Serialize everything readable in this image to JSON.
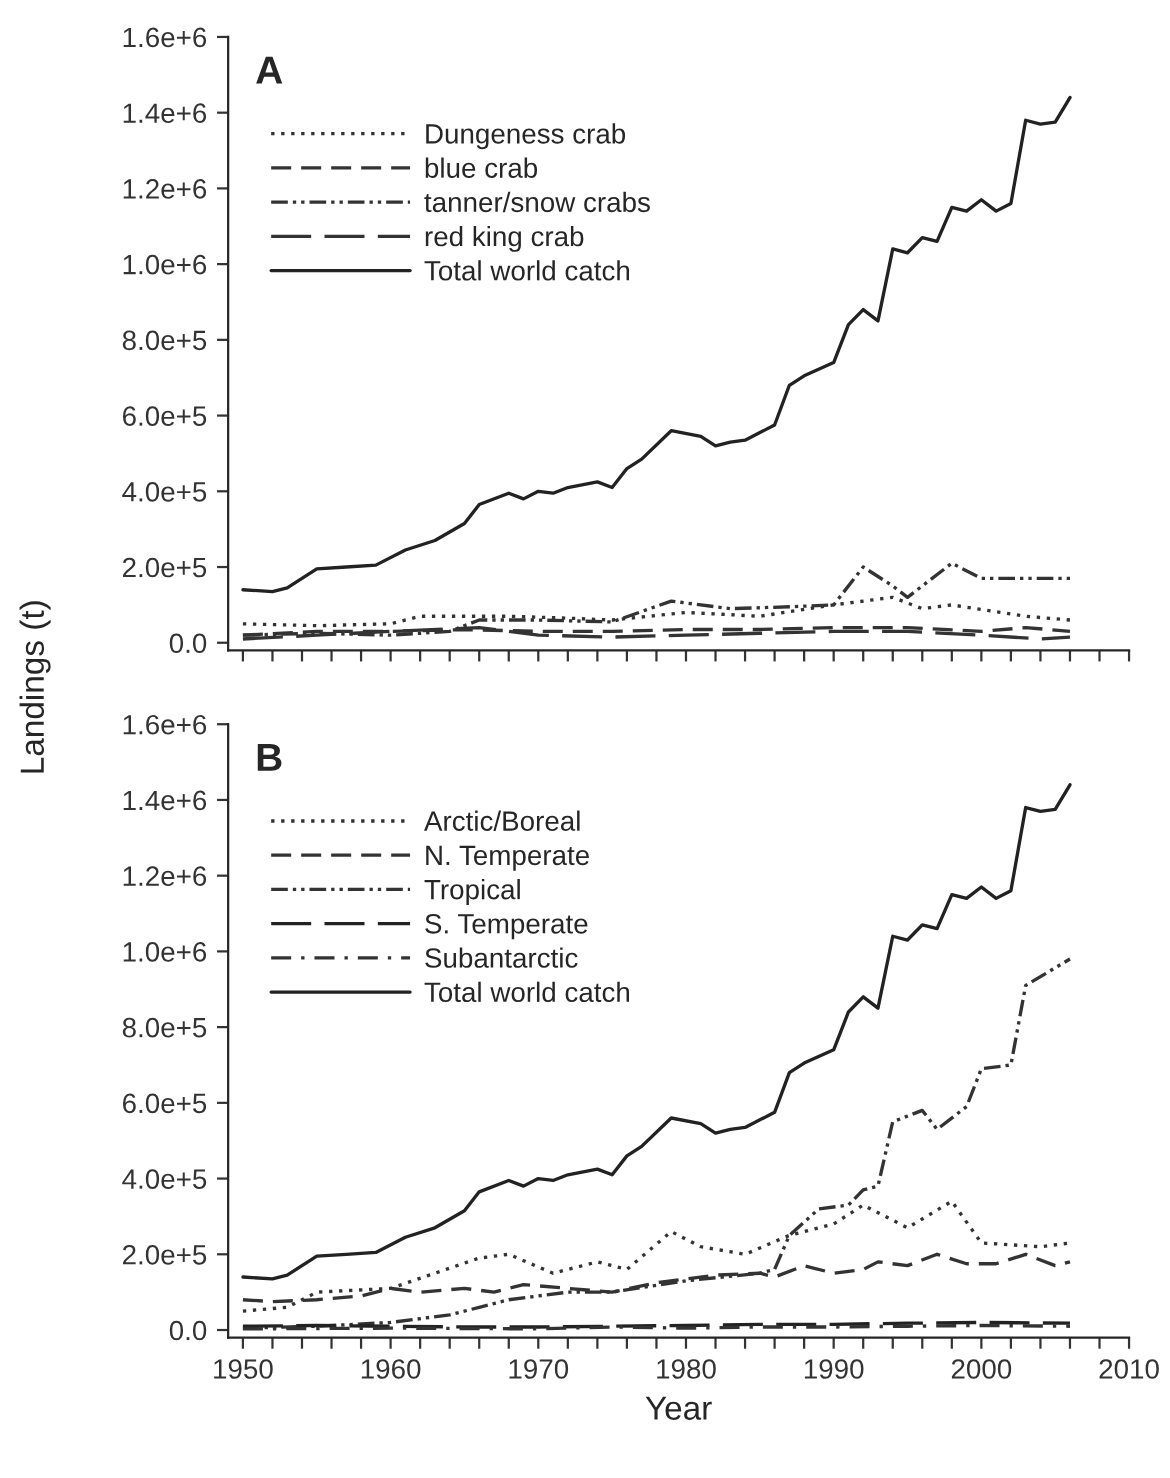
{
  "chart_data": [
    {
      "type": "line",
      "ylabel": "Landings (t)",
      "annotations": [
        "A"
      ],
      "legend": "top left",
      "tick_labels": "y",
      "grid": false,
      "xlim": [
        1949,
        2010
      ],
      "ylim": [
        -20000,
        1600000
      ],
      "xticks": [
        {
          "value": 1950,
          "label": null
        },
        {
          "value": 1952,
          "label": null
        },
        {
          "value": 1954,
          "label": null
        },
        {
          "value": 1956,
          "label": null
        },
        {
          "value": 1958,
          "label": null
        },
        {
          "value": 1960,
          "label": null
        },
        {
          "value": 1962,
          "label": null
        },
        {
          "value": 1964,
          "label": null
        },
        {
          "value": 1966,
          "label": null
        },
        {
          "value": 1968,
          "label": null
        },
        {
          "value": 1970,
          "label": null
        },
        {
          "value": 1972,
          "label": null
        },
        {
          "value": 1974,
          "label": null
        },
        {
          "value": 1976,
          "label": null
        },
        {
          "value": 1978,
          "label": null
        },
        {
          "value": 1980,
          "label": null
        },
        {
          "value": 1982,
          "label": null
        },
        {
          "value": 1984,
          "label": null
        },
        {
          "value": 1986,
          "label": null
        },
        {
          "value": 1988,
          "label": null
        },
        {
          "value": 1990,
          "label": null
        },
        {
          "value": 1992,
          "label": null
        },
        {
          "value": 1994,
          "label": null
        },
        {
          "value": 1996,
          "label": null
        },
        {
          "value": 1998,
          "label": null
        },
        {
          "value": 2000,
          "label": null
        },
        {
          "value": 2002,
          "label": null
        },
        {
          "value": 2004,
          "label": null
        },
        {
          "value": 2006,
          "label": null
        },
        {
          "value": 2008,
          "label": null
        },
        {
          "value": 2010,
          "label": null
        }
      ],
      "yticks": [
        {
          "value": 0,
          "label": "0.0"
        },
        {
          "value": 200000,
          "label": "2.0e+5"
        },
        {
          "value": 400000,
          "label": "4.0e+5"
        },
        {
          "value": 600000,
          "label": "6.0e+5"
        },
        {
          "value": 800000,
          "label": "8.0e+5"
        },
        {
          "value": 1000000,
          "label": "1.0e+6"
        },
        {
          "value": 1200000,
          "label": "1.2e+6"
        },
        {
          "value": 1400000,
          "label": "1.4e+6"
        },
        {
          "value": 1600000,
          "label": "1.6e+6"
        }
      ],
      "series": [
        {
          "name": "Dungeness crab",
          "color": "#333333",
          "line_style": "dotted",
          "x": [
            1950,
            1955,
            1960,
            1962,
            1966,
            1968,
            1972,
            1975,
            1980,
            1985,
            1990,
            1994,
            1996,
            1998,
            2003,
            2006
          ],
          "values": [
            50000,
            45000,
            50000,
            70000,
            70000,
            70000,
            65000,
            60000,
            80000,
            70000,
            100000,
            120000,
            90000,
            100000,
            70000,
            60000
          ]
        },
        {
          "name": "blue crab",
          "color": "#333333",
          "line_style": "dashed",
          "x": [
            1950,
            1955,
            1960,
            1965,
            1970,
            1975,
            1980,
            1985,
            1990,
            1995,
            2000,
            2003,
            2006
          ],
          "values": [
            20000,
            30000,
            30000,
            35000,
            30000,
            30000,
            35000,
            35000,
            40000,
            40000,
            30000,
            40000,
            30000
          ]
        },
        {
          "name": "tanner/snow crabs",
          "color": "#333333",
          "line_style": "dashdotdot",
          "x": [
            1950,
            1955,
            1960,
            1964,
            1966,
            1970,
            1975,
            1979,
            1983,
            1987,
            1990,
            1992,
            1994,
            1995,
            1998,
            2000,
            2003,
            2006
          ],
          "values": [
            20000,
            25000,
            20000,
            30000,
            60000,
            60000,
            55000,
            110000,
            90000,
            95000,
            100000,
            200000,
            150000,
            120000,
            210000,
            170000,
            170000,
            170000
          ]
        },
        {
          "name": "red king crab",
          "color": "#333333",
          "line_style": "longdash",
          "x": [
            1950,
            1955,
            1960,
            1966,
            1970,
            1975,
            1980,
            1985,
            1990,
            1995,
            2000,
            2004,
            2006
          ],
          "values": [
            10000,
            20000,
            30000,
            40000,
            20000,
            15000,
            20000,
            25000,
            30000,
            30000,
            20000,
            10000,
            15000
          ]
        },
        {
          "name": "Total world catch",
          "color": "#222222",
          "line_style": "solid",
          "x": [
            1950,
            1952,
            1953,
            1955,
            1957,
            1959,
            1961,
            1963,
            1965,
            1966,
            1968,
            1969,
            1970,
            1971,
            1972,
            1974,
            1975,
            1976,
            1977,
            1979,
            1981,
            1982,
            1983,
            1984,
            1986,
            1987,
            1988,
            1990,
            1991,
            1992,
            1993,
            1994,
            1995,
            1996,
            1997,
            1998,
            1999,
            2000,
            2001,
            2002,
            2003,
            2004,
            2005,
            2006
          ],
          "values": [
            140000,
            135000,
            145000,
            195000,
            200000,
            205000,
            245000,
            270000,
            315000,
            365000,
            395000,
            380000,
            400000,
            395000,
            410000,
            425000,
            410000,
            460000,
            485000,
            560000,
            545000,
            520000,
            530000,
            535000,
            575000,
            680000,
            705000,
            740000,
            840000,
            880000,
            850000,
            1040000,
            1030000,
            1070000,
            1060000,
            1150000,
            1140000,
            1170000,
            1140000,
            1160000,
            1380000,
            1370000,
            1375000,
            1440000
          ]
        }
      ]
    },
    {
      "type": "line",
      "xlabel": "Year",
      "annotations": [
        "B"
      ],
      "legend": "top left",
      "grid": false,
      "xlim": [
        1949,
        2010
      ],
      "ylim": [
        -20000,
        1600000
      ],
      "xticks": [
        1950,
        {
          "value": 1952,
          "label": null
        },
        {
          "value": 1954,
          "label": null
        },
        {
          "value": 1956,
          "label": null
        },
        {
          "value": 1958,
          "label": null
        },
        1960,
        {
          "value": 1962,
          "label": null
        },
        {
          "value": 1964,
          "label": null
        },
        {
          "value": 1966,
          "label": null
        },
        {
          "value": 1968,
          "label": null
        },
        1970,
        {
          "value": 1972,
          "label": null
        },
        {
          "value": 1974,
          "label": null
        },
        {
          "value": 1976,
          "label": null
        },
        {
          "value": 1978,
          "label": null
        },
        1980,
        {
          "value": 1982,
          "label": null
        },
        {
          "value": 1984,
          "label": null
        },
        {
          "value": 1986,
          "label": null
        },
        {
          "value": 1988,
          "label": null
        },
        1990,
        {
          "value": 1992,
          "label": null
        },
        {
          "value": 1994,
          "label": null
        },
        {
          "value": 1996,
          "label": null
        },
        {
          "value": 1998,
          "label": null
        },
        2000,
        {
          "value": 2002,
          "label": null
        },
        {
          "value": 2004,
          "label": null
        },
        {
          "value": 2006,
          "label": null
        },
        {
          "value": 2008,
          "label": null
        },
        2010
      ],
      "yticks": [
        {
          "value": 0,
          "label": "0.0"
        },
        {
          "value": 200000,
          "label": "2.0e+5"
        },
        {
          "value": 400000,
          "label": "4.0e+5"
        },
        {
          "value": 600000,
          "label": "6.0e+5"
        },
        {
          "value": 800000,
          "label": "8.0e+5"
        },
        {
          "value": 1000000,
          "label": "1.0e+6"
        },
        {
          "value": 1200000,
          "label": "1.2e+6"
        },
        {
          "value": 1400000,
          "label": "1.4e+6"
        },
        {
          "value": 1600000,
          "label": "1.6e+6"
        }
      ],
      "series": [
        {
          "name": "Arctic/Boreal",
          "color": "#333333",
          "line_style": "dotted",
          "x": [
            1950,
            1953,
            1955,
            1960,
            1963,
            1966,
            1968,
            1971,
            1974,
            1976,
            1979,
            1981,
            1984,
            1987,
            1990,
            1992,
            1995,
            1998,
            2000,
            2004,
            2006
          ],
          "values": [
            50000,
            60000,
            100000,
            110000,
            150000,
            190000,
            200000,
            150000,
            180000,
            160000,
            260000,
            220000,
            200000,
            250000,
            280000,
            330000,
            270000,
            340000,
            230000,
            220000,
            230000
          ]
        },
        {
          "name": "N. Temperate",
          "color": "#333333",
          "line_style": "dashed",
          "x": [
            1950,
            1952,
            1955,
            1958,
            1960,
            1962,
            1965,
            1967,
            1969,
            1972,
            1975,
            1978,
            1982,
            1985,
            1986,
            1988,
            1990,
            1992,
            1993,
            1995,
            1997,
            1999,
            2001,
            2003,
            2005,
            2006
          ],
          "values": [
            80000,
            75000,
            80000,
            90000,
            110000,
            100000,
            110000,
            100000,
            120000,
            110000,
            100000,
            125000,
            145000,
            150000,
            140000,
            170000,
            150000,
            160000,
            180000,
            170000,
            200000,
            175000,
            175000,
            200000,
            170000,
            180000
          ]
        },
        {
          "name": "Tropical",
          "color": "#333333",
          "line_style": "dashdotdot",
          "x": [
            1950,
            1955,
            1960,
            1964,
            1966,
            1968,
            1970,
            1972,
            1975,
            1980,
            1985,
            1986,
            1987,
            1989,
            1991,
            1992,
            1993,
            1994,
            1996,
            1997,
            1999,
            2000,
            2002,
            2003,
            2006
          ],
          "values": [
            5000,
            10000,
            20000,
            40000,
            60000,
            80000,
            90000,
            100000,
            100000,
            130000,
            150000,
            160000,
            250000,
            320000,
            330000,
            370000,
            380000,
            550000,
            580000,
            530000,
            590000,
            690000,
            700000,
            910000,
            980000
          ]
        },
        {
          "name": "S. Temperate",
          "color": "#222222",
          "line_style": "longdash",
          "x": [
            1950,
            1955,
            1960,
            1965,
            1970,
            1975,
            1980,
            1985,
            1990,
            1995,
            2000,
            2006
          ],
          "values": [
            10000,
            12000,
            10000,
            8000,
            8000,
            10000,
            12000,
            15000,
            15000,
            18000,
            20000,
            18000
          ]
        },
        {
          "name": "Subantarctic",
          "color": "#333333",
          "line_style": "dashdot",
          "x": [
            1950,
            1960,
            1970,
            1975,
            1980,
            1985,
            1990,
            1995,
            2000,
            2006
          ],
          "values": [
            3000,
            5000,
            3000,
            8000,
            5000,
            8000,
            8000,
            10000,
            12000,
            10000
          ]
        },
        {
          "name": "Total world catch",
          "color": "#222222",
          "line_style": "solid",
          "x": [
            1950,
            1952,
            1953,
            1955,
            1957,
            1959,
            1961,
            1963,
            1965,
            1966,
            1968,
            1969,
            1970,
            1971,
            1972,
            1974,
            1975,
            1976,
            1977,
            1979,
            1981,
            1982,
            1983,
            1984,
            1986,
            1987,
            1988,
            1990,
            1991,
            1992,
            1993,
            1994,
            1995,
            1996,
            1997,
            1998,
            1999,
            2000,
            2001,
            2002,
            2003,
            2004,
            2005,
            2006
          ],
          "values": [
            140000,
            135000,
            145000,
            195000,
            200000,
            205000,
            245000,
            270000,
            315000,
            365000,
            395000,
            380000,
            400000,
            395000,
            410000,
            425000,
            410000,
            460000,
            485000,
            560000,
            545000,
            520000,
            530000,
            535000,
            575000,
            680000,
            705000,
            740000,
            840000,
            880000,
            850000,
            1040000,
            1030000,
            1070000,
            1060000,
            1150000,
            1140000,
            1170000,
            1140000,
            1160000,
            1380000,
            1370000,
            1375000,
            1440000
          ]
        }
      ]
    }
  ]
}
